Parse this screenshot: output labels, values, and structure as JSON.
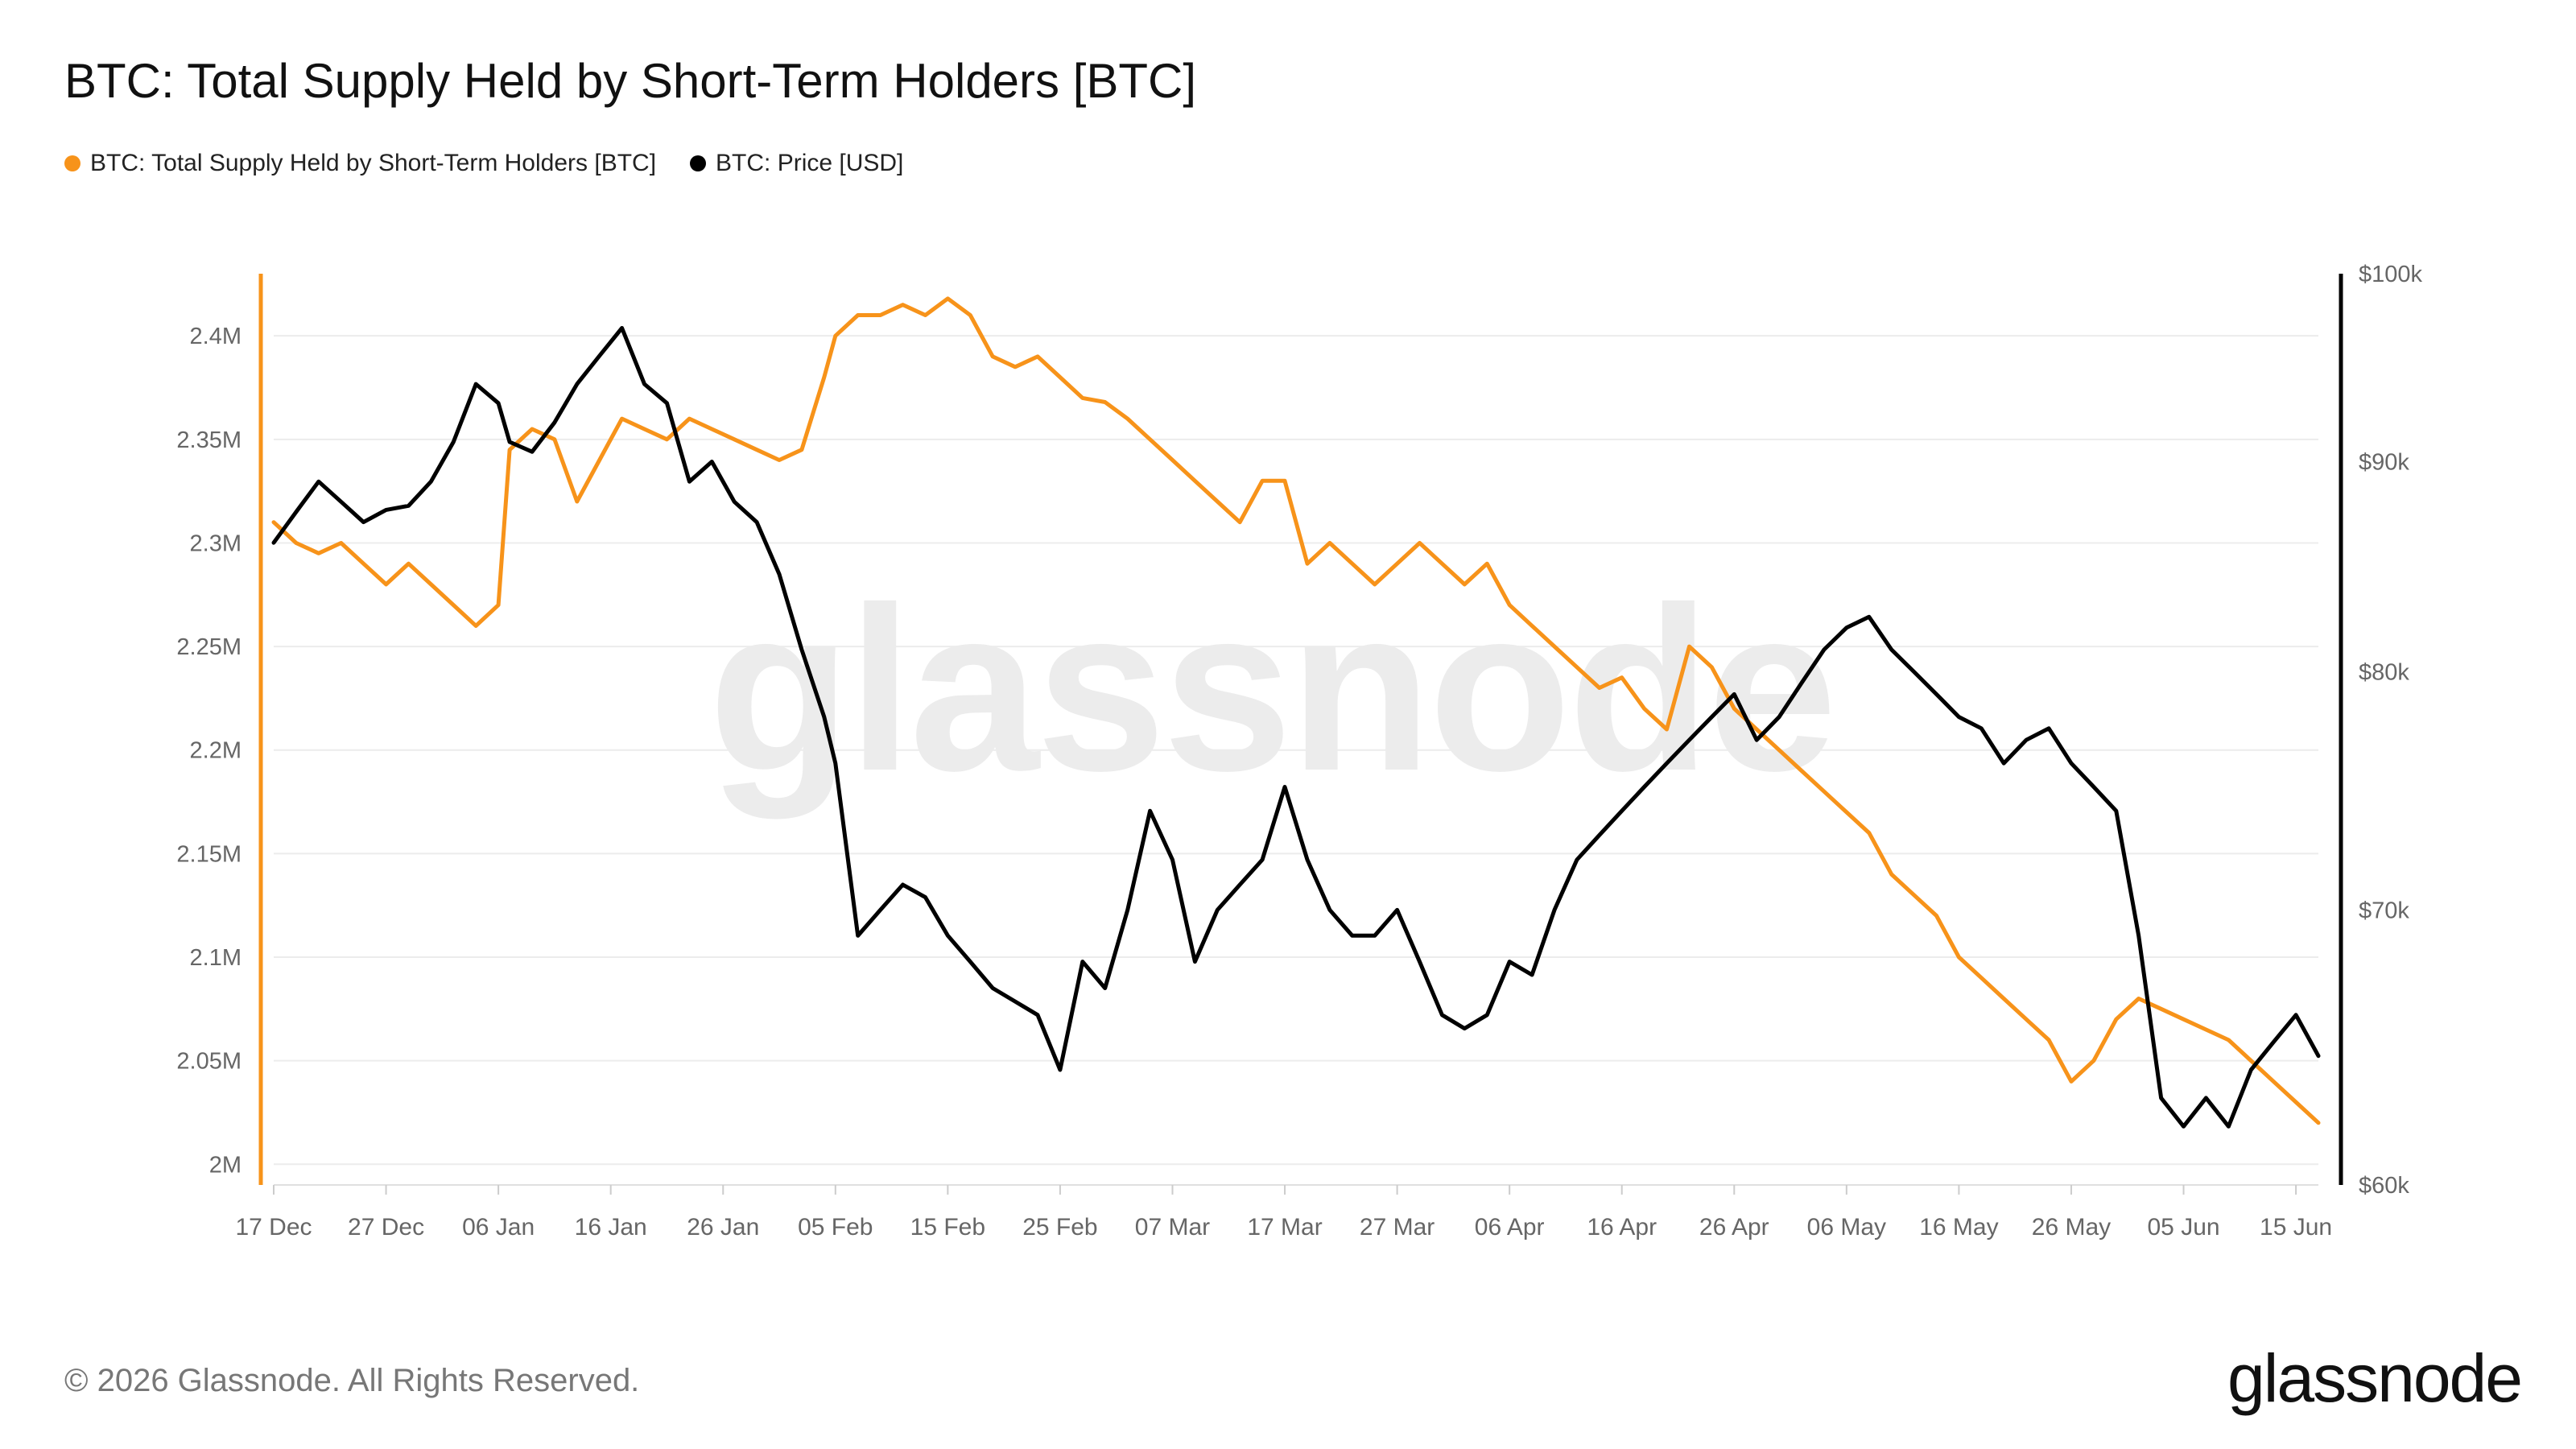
{
  "chart_data": {
    "type": "line",
    "title": "BTC: Total Supply Held by Short-Term Holders [BTC]",
    "legend_placement": "top-left",
    "grid": true,
    "x": [
      "2024-12-17",
      "2024-12-19",
      "2024-12-21",
      "2024-12-23",
      "2024-12-25",
      "2024-12-27",
      "2024-12-29",
      "2024-12-31",
      "2025-01-02",
      "2025-01-04",
      "2025-01-06",
      "2025-01-07",
      "2025-01-09",
      "2025-01-11",
      "2025-01-13",
      "2025-01-15",
      "2025-01-17",
      "2025-01-19",
      "2025-01-21",
      "2025-01-23",
      "2025-01-25",
      "2025-01-27",
      "2025-01-29",
      "2025-01-31",
      "2025-02-02",
      "2025-02-04",
      "2025-02-05",
      "2025-02-07",
      "2025-02-09",
      "2025-02-11",
      "2025-02-13",
      "2025-02-15",
      "2025-02-17",
      "2025-02-19",
      "2025-02-21",
      "2025-02-23",
      "2025-02-25",
      "2025-02-27",
      "2025-03-01",
      "2025-03-03",
      "2025-03-05",
      "2025-03-07",
      "2025-03-09",
      "2025-03-11",
      "2025-03-13",
      "2025-03-15",
      "2025-03-17",
      "2025-03-19",
      "2025-03-21",
      "2025-03-23",
      "2025-03-25",
      "2025-03-27",
      "2025-03-29",
      "2025-03-31",
      "2025-04-02",
      "2025-04-04",
      "2025-04-06",
      "2025-04-08",
      "2025-04-10",
      "2025-04-12",
      "2025-04-14",
      "2025-04-16",
      "2025-04-18",
      "2025-04-20",
      "2025-04-22",
      "2025-04-24",
      "2025-04-26",
      "2025-04-28",
      "2025-04-30",
      "2025-05-02",
      "2025-05-04",
      "2025-05-06",
      "2025-05-08",
      "2025-05-10",
      "2025-05-12",
      "2025-05-14",
      "2025-05-16",
      "2025-05-18",
      "2025-05-20",
      "2025-05-22",
      "2025-05-24",
      "2025-05-26",
      "2025-05-28",
      "2025-05-30",
      "2025-06-01",
      "2025-06-03",
      "2025-06-05",
      "2025-06-07",
      "2025-06-09",
      "2025-06-11",
      "2025-06-13",
      "2025-06-15",
      "2025-06-17"
    ],
    "x_ticks": [
      "17 Dec",
      "27 Dec",
      "06 Jan",
      "16 Jan",
      "26 Jan",
      "05 Feb",
      "15 Feb",
      "25 Feb",
      "07 Mar",
      "17 Mar",
      "27 Mar",
      "06 Apr",
      "16 Apr",
      "26 Apr",
      "06 May",
      "16 May",
      "26 May",
      "05 Jun",
      "15 Jun"
    ],
    "y_left": {
      "ticks": [
        "2M",
        "2.05M",
        "2.1M",
        "2.15M",
        "2.2M",
        "2.25M",
        "2.3M",
        "2.35M",
        "2.4M"
      ],
      "ylim": [
        1.99,
        2.43
      ],
      "unit": "BTC"
    },
    "y_right": {
      "ticks": [
        "$60k",
        "$70k",
        "$80k",
        "$90k",
        "$100k"
      ],
      "ylim": [
        60000,
        100000
      ],
      "scale": "log",
      "unit": "USD"
    },
    "series": [
      {
        "name": "BTC: Total Supply Held by Short-Term Holders [BTC]",
        "axis": "left",
        "color": "#f7931a",
        "values": [
          2.31,
          2.3,
          2.295,
          2.3,
          2.29,
          2.28,
          2.29,
          2.28,
          2.27,
          2.26,
          2.27,
          2.345,
          2.355,
          2.35,
          2.32,
          2.34,
          2.36,
          2.355,
          2.35,
          2.36,
          2.355,
          2.35,
          2.345,
          2.34,
          2.345,
          2.38,
          2.4,
          2.41,
          2.41,
          2.415,
          2.41,
          2.418,
          2.41,
          2.39,
          2.385,
          2.39,
          2.38,
          2.37,
          2.368,
          2.36,
          2.35,
          2.34,
          2.33,
          2.32,
          2.31,
          2.33,
          2.33,
          2.29,
          2.3,
          2.29,
          2.28,
          2.29,
          2.3,
          2.29,
          2.28,
          2.29,
          2.27,
          2.26,
          2.25,
          2.24,
          2.23,
          2.235,
          2.22,
          2.21,
          2.25,
          2.24,
          2.22,
          2.21,
          2.2,
          2.19,
          2.18,
          2.17,
          2.16,
          2.14,
          2.13,
          2.12,
          2.1,
          2.09,
          2.08,
          2.07,
          2.06,
          2.04,
          2.05,
          2.07,
          2.08,
          2.075,
          2.07,
          2.065,
          2.06,
          2.05,
          2.04,
          2.03,
          2.02
        ]
      },
      {
        "name": "BTC: Price [USD]",
        "axis": "right",
        "color": "#000000",
        "values": [
          86000,
          87500,
          89000,
          88000,
          87000,
          87600,
          87800,
          89000,
          91000,
          94000,
          93000,
          91000,
          90500,
          92000,
          94000,
          95500,
          97000,
          94000,
          93000,
          89000,
          90000,
          88000,
          87000,
          84500,
          81000,
          78000,
          76000,
          69000,
          70000,
          71000,
          70500,
          69000,
          68000,
          67000,
          66500,
          66000,
          64000,
          68000,
          67000,
          70000,
          74000,
          72000,
          68000,
          70000,
          71000,
          72000,
          75000,
          72000,
          70000,
          69000,
          69000,
          70000,
          68000,
          66000,
          65500,
          66000,
          68000,
          67500,
          70000,
          72000,
          73000,
          74000,
          75000,
          76000,
          77000,
          78000,
          79000,
          77000,
          78000,
          79500,
          81000,
          82000,
          82500,
          81000,
          80000,
          79000,
          78000,
          77500,
          76000,
          77000,
          77500,
          76000,
          75000,
          74000,
          69000,
          63000,
          62000,
          63000,
          62000,
          64000,
          65000,
          66000,
          64500
        ]
      }
    ]
  },
  "footer": {
    "copyright": "© 2026 Glassnode. All Rights Reserved.",
    "logo_text": "glassnode"
  },
  "watermark": "glassnode"
}
